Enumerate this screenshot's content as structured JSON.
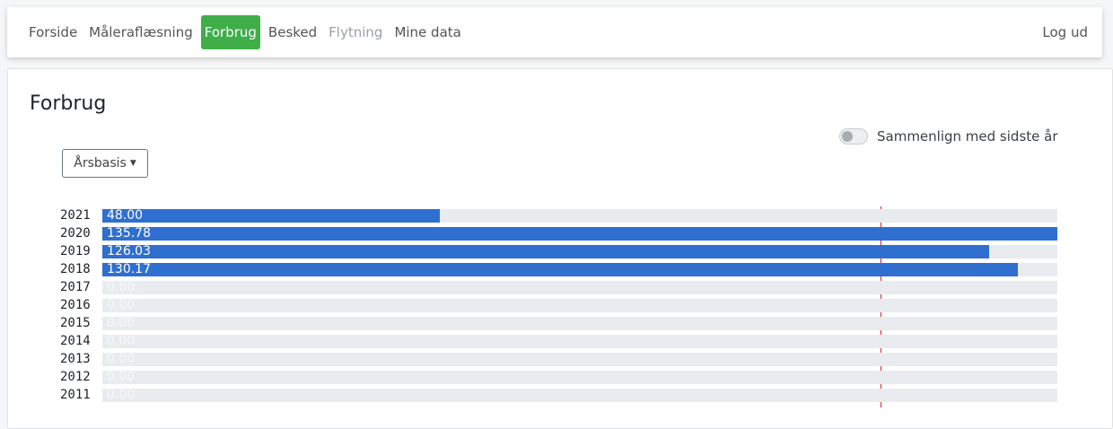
{
  "nav": {
    "items": [
      {
        "label": "Forside",
        "state": "normal"
      },
      {
        "label": "Måleraflæsning",
        "state": "normal"
      },
      {
        "label": "Forbrug",
        "state": "active"
      },
      {
        "label": "Besked",
        "state": "normal"
      },
      {
        "label": "Flytning",
        "state": "disabled"
      },
      {
        "label": "Mine data",
        "state": "normal"
      }
    ],
    "logout_label": "Log ud",
    "active_color": "#3fae49"
  },
  "page": {
    "title": "Forbrug",
    "compare_toggle_label": "Sammenlign med sidste år",
    "compare_toggle_on": false,
    "period_dropdown_value": "Årsbasis"
  },
  "chart_data": {
    "type": "bar",
    "orientation": "horizontal",
    "categories": [
      "2021",
      "2020",
      "2019",
      "2018",
      "2017",
      "2016",
      "2015",
      "2014",
      "2013",
      "2012",
      "2011"
    ],
    "values": [
      48.0,
      135.78,
      126.03,
      130.17,
      0.0,
      0.0,
      0.0,
      0.0,
      0.0,
      0.0,
      0.0
    ],
    "value_labels": [
      "48.00",
      "135.78",
      "126.03",
      "130.17",
      "0.00",
      "0.00",
      "0.00",
      "0.00",
      "0.00",
      "0.00",
      "0.00"
    ],
    "xlim": [
      0,
      135.78
    ],
    "reference_value": 110.7,
    "bar_color": "#2f6fcf",
    "track_color": "#e9ecef",
    "reference_color": "#d81e1e"
  }
}
